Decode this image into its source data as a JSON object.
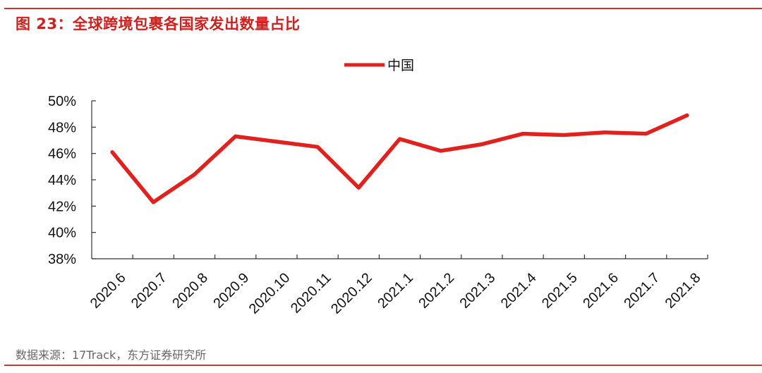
{
  "title": "图 23：全球跨境包裹各国家发出数量占比",
  "source": "数据来源：17Track，东方证券研究所",
  "colors": {
    "accent": "#d0201e",
    "line": "#e0211d",
    "rule_bottom": "#b5423b"
  },
  "legend": {
    "label": "中国"
  },
  "chart_data": {
    "type": "line",
    "title": "全球跨境包裹各国家发出数量占比",
    "xlabel": "",
    "ylabel": "",
    "categories": [
      "2020.6",
      "2020.7",
      "2020.8",
      "2020.9",
      "2020.10",
      "2020.11",
      "2020.12",
      "2021.1",
      "2021.2",
      "2021.3",
      "2021.4",
      "2021.5",
      "2021.6",
      "2021.7",
      "2021.8"
    ],
    "series": [
      {
        "name": "中国",
        "values": [
          46.1,
          42.3,
          44.4,
          47.3,
          46.9,
          46.5,
          43.4,
          47.1,
          46.2,
          46.7,
          47.5,
          47.4,
          47.6,
          47.5,
          48.9
        ]
      }
    ],
    "ylim": [
      38,
      50
    ],
    "yticks": [
      "38%",
      "40%",
      "42%",
      "44%",
      "46%",
      "48%",
      "50%"
    ],
    "grid": false,
    "legend_position": "top-center"
  }
}
